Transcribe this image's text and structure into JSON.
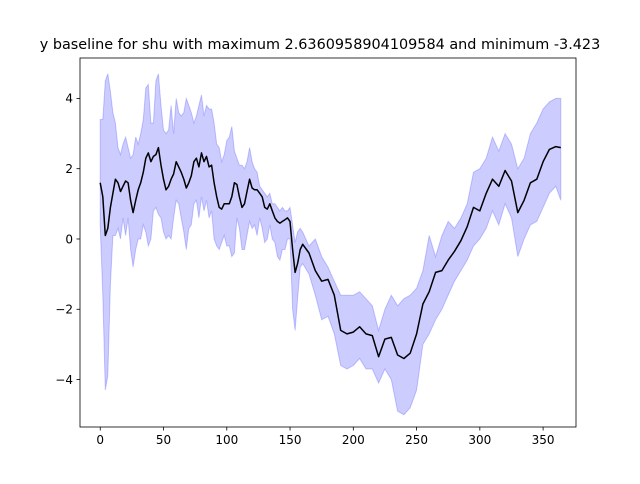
{
  "chart_data": {
    "type": "line",
    "title": "y baseline for shu with maximum 2.6360958904109584 and minimum -3.423",
    "xlabel": "",
    "ylabel": "",
    "xlim": [
      -16,
      376
    ],
    "ylim": [
      -5.35,
      5.15
    ],
    "xticks": [
      0,
      50,
      100,
      150,
      200,
      250,
      300,
      350
    ],
    "yticks": [
      -4,
      -2,
      0,
      2,
      4
    ],
    "ytick_labels": [
      "−4",
      "−2",
      "0",
      "2",
      "4"
    ],
    "grid": false,
    "legend": "none",
    "colors": {
      "line": "#000000",
      "band": "#0000ff",
      "axes": "#000000"
    },
    "series": [
      {
        "values_description_free": true,
        "x": [
          0,
          2,
          4,
          6,
          8,
          10,
          12,
          14,
          16,
          18,
          20,
          22,
          24,
          26,
          28,
          30,
          32,
          34,
          36,
          38,
          40,
          42,
          44,
          46,
          48,
          50,
          52,
          54,
          56,
          58,
          60,
          62,
          64,
          66,
          68,
          70,
          72,
          74,
          76,
          78,
          80,
          82,
          84,
          86,
          88,
          90,
          92,
          94,
          96,
          98,
          100,
          102,
          104,
          106,
          108,
          110,
          112,
          114,
          116,
          118,
          120,
          122,
          124,
          126,
          128,
          130,
          132,
          134,
          136,
          138,
          140,
          142,
          144,
          146,
          148,
          150,
          152,
          154,
          156,
          158,
          160,
          165,
          170,
          175,
          180,
          185,
          190,
          195,
          200,
          205,
          210,
          215,
          220,
          225,
          230,
          235,
          240,
          245,
          250,
          255,
          260,
          265,
          270,
          275,
          280,
          285,
          290,
          295,
          300,
          305,
          310,
          315,
          320,
          325,
          330,
          335,
          340,
          345,
          350,
          355,
          360,
          364
        ],
        "y": [
          1.6,
          1.2,
          0.1,
          0.3,
          0.9,
          1.3,
          1.7,
          1.6,
          1.35,
          1.5,
          1.65,
          1.6,
          1.1,
          0.75,
          1.1,
          1.4,
          1.6,
          1.9,
          2.3,
          2.45,
          2.2,
          2.35,
          2.4,
          2.6,
          2.1,
          1.7,
          1.4,
          1.5,
          1.7,
          1.85,
          2.2,
          2.05,
          1.9,
          1.7,
          1.45,
          1.6,
          1.8,
          2.2,
          2.3,
          2.05,
          2.45,
          2.2,
          2.35,
          2.05,
          2.1,
          1.6,
          1.2,
          0.9,
          0.85,
          1.0,
          1.0,
          1.0,
          1.2,
          1.6,
          1.55,
          1.2,
          0.9,
          1.0,
          1.35,
          1.7,
          1.45,
          1.4,
          1.4,
          1.3,
          1.2,
          0.9,
          0.85,
          1.0,
          0.8,
          0.6,
          0.5,
          0.45,
          0.5,
          0.55,
          0.6,
          0.5,
          -0.3,
          -0.95,
          -0.7,
          -0.3,
          -0.15,
          -0.4,
          -0.9,
          -1.2,
          -1.15,
          -1.6,
          -2.6,
          -2.7,
          -2.65,
          -2.5,
          -2.7,
          -2.75,
          -3.35,
          -2.85,
          -2.8,
          -3.3,
          -3.4,
          -3.25,
          -2.7,
          -1.85,
          -1.5,
          -0.95,
          -0.9,
          -0.6,
          -0.35,
          -0.05,
          0.35,
          0.9,
          0.8,
          1.3,
          1.7,
          1.5,
          1.95,
          1.65,
          0.75,
          1.1,
          1.6,
          1.7,
          2.2,
          2.55,
          2.63,
          2.6
        ]
      }
    ],
    "band": {
      "x": [
        0,
        2,
        4,
        6,
        8,
        10,
        12,
        14,
        16,
        18,
        20,
        22,
        24,
        26,
        28,
        30,
        32,
        34,
        36,
        38,
        40,
        42,
        44,
        46,
        48,
        50,
        52,
        54,
        56,
        58,
        60,
        62,
        64,
        66,
        68,
        70,
        72,
        74,
        76,
        78,
        80,
        82,
        84,
        86,
        88,
        90,
        92,
        94,
        96,
        98,
        100,
        102,
        104,
        106,
        108,
        110,
        112,
        114,
        116,
        118,
        120,
        122,
        124,
        126,
        128,
        130,
        132,
        134,
        136,
        138,
        140,
        142,
        144,
        146,
        148,
        150,
        152,
        154,
        156,
        158,
        160,
        165,
        170,
        175,
        180,
        185,
        190,
        195,
        200,
        205,
        210,
        215,
        220,
        225,
        230,
        235,
        240,
        245,
        250,
        255,
        260,
        265,
        270,
        275,
        280,
        285,
        290,
        295,
        300,
        305,
        310,
        315,
        320,
        325,
        330,
        335,
        340,
        345,
        350,
        355,
        360,
        364
      ],
      "upper": [
        3.4,
        3.4,
        4.5,
        4.7,
        4.2,
        3.6,
        3.3,
        2.6,
        2.4,
        2.7,
        2.9,
        2.6,
        2.3,
        2.4,
        2.9,
        2.7,
        3.0,
        3.4,
        4.3,
        4.4,
        3.3,
        3.3,
        4.5,
        4.7,
        3.8,
        3.1,
        3.0,
        3.1,
        3.8,
        3.0,
        4.0,
        3.6,
        3.5,
        3.6,
        4.0,
        3.8,
        3.6,
        3.3,
        3.5,
        3.8,
        4.1,
        3.5,
        3.8,
        3.7,
        3.7,
        3.3,
        2.7,
        2.6,
        2.2,
        2.4,
        2.8,
        2.9,
        3.2,
        2.5,
        2.3,
        2.1,
        2.1,
        2.0,
        2.2,
        2.6,
        2.2,
        2.0,
        1.9,
        1.5,
        1.4,
        1.3,
        1.2,
        1.3,
        1.0,
        1.0,
        0.9,
        0.8,
        0.9,
        0.8,
        0.8,
        0.9,
        0.4,
        -0.1,
        0.2,
        0.3,
        0.2,
        -0.2,
        0.0,
        -0.5,
        -0.8,
        -1.2,
        -1.6,
        -1.6,
        -1.6,
        -1.5,
        -1.7,
        -1.9,
        -2.6,
        -2.0,
        -1.6,
        -1.9,
        -1.7,
        -1.6,
        -1.4,
        -0.9,
        0.1,
        -0.5,
        0.1,
        0.5,
        0.3,
        0.6,
        1.0,
        1.9,
        2.0,
        2.3,
        2.9,
        2.5,
        3.0,
        2.7,
        2.0,
        2.3,
        3.0,
        3.3,
        3.7,
        3.9,
        4.0,
        4.0
      ],
      "lower": [
        0.4,
        -1.6,
        -4.3,
        -3.9,
        -1.3,
        0.1,
        0.1,
        0.3,
        0.0,
        0.6,
        0.1,
        0.6,
        -0.3,
        -0.8,
        -0.3,
        0.0,
        0.0,
        0.4,
        0.2,
        -0.2,
        0.0,
        0.8,
        0.9,
        0.7,
        0.6,
        0.2,
        0.0,
        0.1,
        0.0,
        0.6,
        1.1,
        1.0,
        0.6,
        0.2,
        -0.3,
        0.3,
        0.4,
        1.0,
        1.1,
        0.6,
        1.2,
        0.8,
        1.1,
        0.6,
        0.8,
        0.0,
        -0.2,
        -0.3,
        -0.1,
        0.1,
        -0.2,
        -0.2,
        -0.5,
        -0.4,
        0.6,
        0.3,
        -0.3,
        -0.3,
        0.1,
        0.5,
        0.3,
        0.4,
        0.1,
        0.6,
        0.3,
        -0.1,
        0.0,
        0.4,
        0.0,
        -0.1,
        -0.5,
        -0.6,
        -0.3,
        -0.3,
        0.0,
        0.0,
        -2.0,
        -2.6,
        -1.7,
        -0.8,
        -0.7,
        -1.0,
        -1.6,
        -2.3,
        -2.2,
        -2.7,
        -3.6,
        -3.7,
        -3.6,
        -3.4,
        -3.7,
        -3.7,
        -4.1,
        -3.7,
        -4.0,
        -4.9,
        -5.0,
        -4.8,
        -4.3,
        -3.0,
        -2.7,
        -2.3,
        -2.0,
        -1.6,
        -1.2,
        -0.9,
        -0.6,
        -0.2,
        0.0,
        0.3,
        0.8,
        0.4,
        1.0,
        0.6,
        -0.5,
        0.0,
        0.4,
        0.5,
        0.9,
        1.3,
        1.5,
        1.1
      ]
    }
  }
}
